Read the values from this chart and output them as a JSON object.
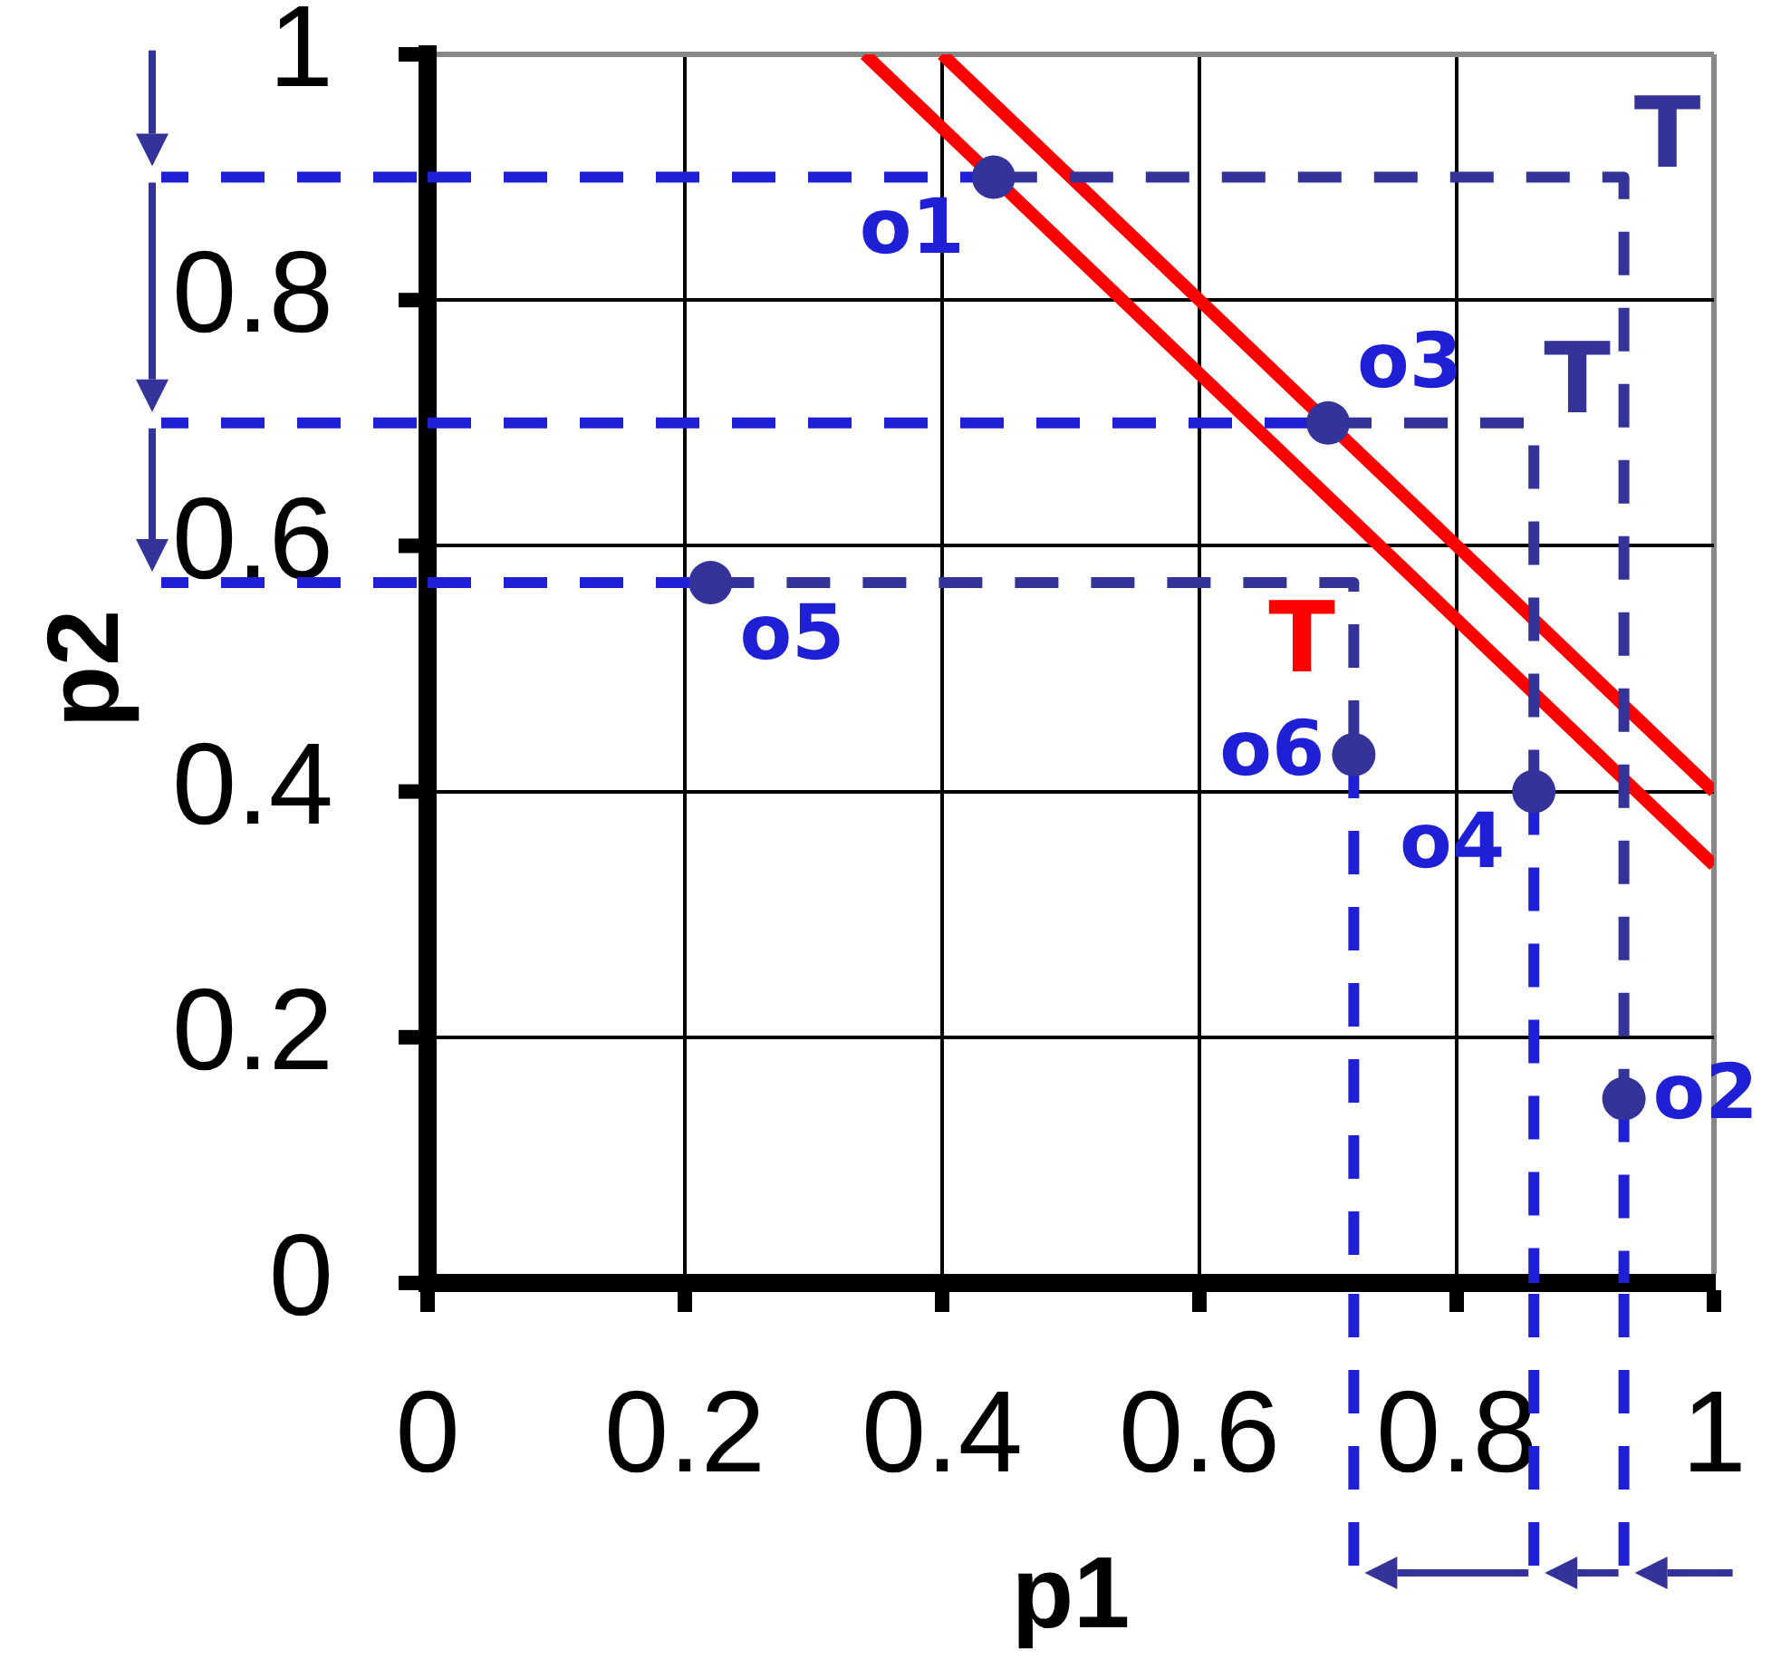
{
  "chart_data": {
    "type": "scatter",
    "xlabel": "p1",
    "ylabel": "p2",
    "xlim": [
      0,
      1
    ],
    "ylim": [
      0,
      1
    ],
    "xticks": [
      0,
      0.2,
      0.4,
      0.6,
      0.8,
      1
    ],
    "yticks": [
      0,
      0.2,
      0.4,
      0.6,
      0.8,
      1
    ],
    "grid": true,
    "series": [
      {
        "type": "line",
        "color": "#1f1fd6",
        "line_style": "dashed",
        "marker": "none",
        "x": [
          0,
          0.44
        ],
        "values": [
          0.9,
          0.9
        ]
      },
      {
        "type": "line",
        "color": "#1f1fd6",
        "line_style": "dashed",
        "marker": "none",
        "x": [
          0,
          0.7
        ],
        "values": [
          0.7,
          0.7
        ]
      },
      {
        "type": "line",
        "color": "#1f1fd6",
        "line_style": "dashed",
        "marker": "none",
        "x": [
          0,
          0.22
        ],
        "values": [
          0.57,
          0.57
        ]
      },
      {
        "type": "line",
        "color": "#1f1fd6",
        "line_style": "dashed",
        "marker": "none",
        "x": [
          0.93,
          0.93
        ],
        "values": [
          0.15,
          0
        ]
      },
      {
        "type": "line",
        "color": "#1f1fd6",
        "line_style": "dashed",
        "marker": "none",
        "x": [
          0.86,
          0.86
        ],
        "values": [
          0.4,
          0
        ]
      },
      {
        "type": "line",
        "color": "#1f1fd6",
        "line_style": "dashed",
        "marker": "none",
        "x": [
          0.72,
          0.72
        ],
        "values": [
          0.43,
          0
        ]
      },
      {
        "type": "line",
        "name": "T",
        "color": "#333399",
        "line_style": "dashed",
        "marker": "none",
        "x": [
          0.44,
          0.93,
          0.93
        ],
        "values": [
          0.9,
          0.9,
          0.15
        ]
      },
      {
        "type": "line",
        "name": "T",
        "color": "#333399",
        "line_style": "dashed",
        "marker": "none",
        "x": [
          0.7,
          0.86,
          0.86
        ],
        "values": [
          0.7,
          0.7,
          0.4
        ]
      },
      {
        "type": "line",
        "color": "#333399",
        "line_style": "dashed",
        "marker": "none",
        "x": [
          0.22,
          0.72,
          0.72
        ],
        "values": [
          0.57,
          0.57,
          0.43
        ]
      },
      {
        "type": "line",
        "name": "T",
        "color": "#ff0000",
        "line_style": "solid",
        "marker": "none",
        "x": [
          0.34,
          1
        ],
        "values": [
          1,
          0.34
        ]
      },
      {
        "type": "line",
        "color": "#ff0000",
        "line_style": "solid",
        "marker": "none",
        "x": [
          0.4,
          1
        ],
        "values": [
          1,
          0.4
        ]
      },
      {
        "type": "scatter",
        "color": "#333399",
        "marker": "circle",
        "x": [
          0.44,
          0.93,
          0.7,
          0.86,
          0.22,
          0.72
        ],
        "values": [
          0.9,
          0.15,
          0.7,
          0.4,
          0.57,
          0.43
        ]
      }
    ],
    "annotations": [
      {
        "text": "o1",
        "x": 0.44,
        "y": 0.9
      },
      {
        "text": "o2",
        "x": 0.93,
        "y": 0.15
      },
      {
        "text": "o3",
        "x": 0.7,
        "y": 0.7
      },
      {
        "text": "o4",
        "x": 0.86,
        "y": 0.4
      },
      {
        "text": "o5",
        "x": 0.22,
        "y": 0.57
      },
      {
        "text": "o6",
        "x": 0.72,
        "y": 0.43
      }
    ]
  }
}
